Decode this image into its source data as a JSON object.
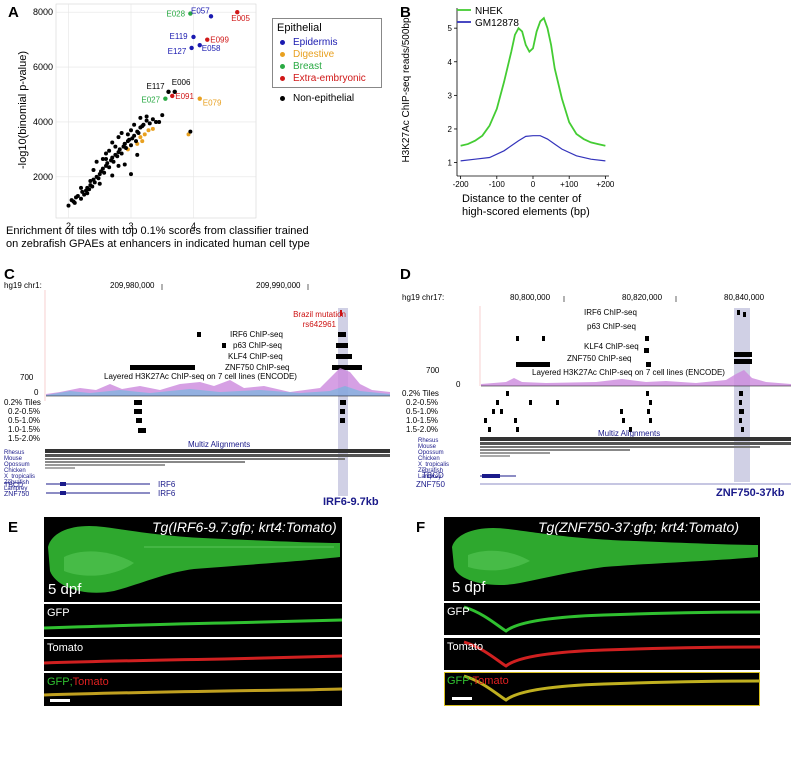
{
  "panels": {
    "A": {
      "letter": "A",
      "chart_data": {
        "type": "scatter",
        "ylabel": "-log10(binomial p-value)",
        "xlabel_lines": [
          "Enrichment of tiles with top 0.1% scores from classifier trained",
          "on zebrafish GPAEs at enhancers in indicated human cell type"
        ],
        "xlim": [
          1.8,
          5.0
        ],
        "ylim": [
          500,
          8300
        ],
        "xticks": [
          "2",
          "3",
          "4"
        ],
        "xtick_values": [
          2,
          3,
          4
        ],
        "yticks": [
          "2000",
          "4000",
          "6000",
          "8000"
        ],
        "ytick_values": [
          2000,
          4000,
          6000,
          8000
        ],
        "legend": {
          "title": "Epithelial",
          "items": [
            {
              "label": "Epidermis",
              "color": "#1a1ab0"
            },
            {
              "label": "Digestive",
              "color": "#e8a020"
            },
            {
              "label": "Breast",
              "color": "#2aaa44"
            },
            {
              "label": "Extra-embryonic",
              "color": "#d01818"
            }
          ],
          "other": {
            "label": "Non-epithelial",
            "color": "#000000"
          }
        },
        "labeled_points": [
          {
            "label": "E028",
            "x": 3.95,
            "y": 7950,
            "color": "#2aaa44"
          },
          {
            "label": "E057",
            "x": 4.28,
            "y": 7850,
            "color": "#1a1ab0"
          },
          {
            "label": "E005",
            "x": 4.7,
            "y": 8000,
            "color": "#d01818"
          },
          {
            "label": "E119",
            "x": 4.0,
            "y": 7100,
            "color": "#1a1ab0"
          },
          {
            "label": "E099",
            "x": 4.22,
            "y": 7000,
            "color": "#d01818"
          },
          {
            "label": "E127",
            "x": 3.97,
            "y": 6700,
            "color": "#1a1ab0"
          },
          {
            "label": "E058",
            "x": 4.1,
            "y": 6800,
            "color": "#1a1ab0"
          },
          {
            "label": "E117",
            "x": 3.6,
            "y": 5100,
            "color": "#000000"
          },
          {
            "label": "E006",
            "x": 3.7,
            "y": 5100,
            "color": "#000000"
          },
          {
            "label": "E027",
            "x": 3.55,
            "y": 4850,
            "color": "#2aaa44"
          },
          {
            "label": "E091",
            "x": 3.66,
            "y": 4950,
            "color": "#d01818"
          },
          {
            "label": "E079",
            "x": 4.1,
            "y": 4850,
            "color": "#e8a020"
          }
        ],
        "series": [
          {
            "name": "Digestive",
            "color": "#e8a020",
            "x": [
              3.15,
              3.28,
              3.35,
              3.18,
              3.22,
              3.92,
              2.95,
              3.1
            ],
            "y": [
              3450,
              3700,
              3750,
              3300,
              3550,
              3550,
              3000,
              3200
            ]
          },
          {
            "name": "Non-epithelial",
            "color": "#000000",
            "x": [
              2.0,
              2.05,
              2.08,
              2.12,
              2.15,
              2.2,
              2.22,
              2.25,
              2.28,
              2.3,
              2.33,
              2.35,
              2.38,
              2.4,
              2.42,
              2.45,
              2.48,
              2.5,
              2.52,
              2.55,
              2.57,
              2.6,
              2.62,
              2.65,
              2.68,
              2.7,
              2.72,
              2.75,
              2.78,
              2.8,
              2.82,
              2.85,
              2.88,
              2.9,
              2.92,
              2.95,
              2.97,
              3.0,
              3.02,
              3.05,
              3.08,
              3.1,
              3.12,
              3.15,
              3.18,
              3.2,
              3.25,
              3.3,
              3.35,
              3.4,
              2.1,
              2.3,
              2.5,
              2.7,
              2.9,
              3.1,
              2.2,
              2.4,
              2.6,
              2.8,
              3.0,
              2.45,
              2.65,
              2.85,
              3.05,
              3.25,
              2.55,
              2.75,
              2.95,
              3.45,
              3.5,
              3.95,
              2.35,
              2.6,
              2.9,
              3.15,
              2.7,
              2.8,
              3.0
            ],
            "y": [
              950,
              1150,
              1100,
              1250,
              1300,
              1200,
              1450,
              1350,
              1500,
              1600,
              1550,
              1700,
              1650,
              1900,
              1800,
              2000,
              1950,
              2100,
              2200,
              2300,
              2150,
              2400,
              2500,
              2350,
              2600,
              2700,
              2550,
              2800,
              2750,
              2900,
              3000,
              2850,
              3100,
              3200,
              3050,
              3300,
              3350,
              3150,
              3400,
              3500,
              3300,
              3650,
              3600,
              3800,
              3850,
              3900,
              4050,
              3950,
              4100,
              4000,
              1050,
              1400,
              1750,
              2050,
              2450,
              2800,
              1600,
              2250,
              2650,
              3450,
              3700,
              2550,
              2950,
              3600,
              3900,
              4200,
              2650,
              3100,
              3550,
              4000,
              4250,
              3650,
              1850,
              2850,
              3200,
              4150,
              3250,
              2400,
              2100
            ]
          }
        ]
      }
    },
    "B": {
      "letter": "B",
      "chart_data": {
        "type": "line",
        "ylabel": "H3K27Ac ChIP-seq reads/500bp",
        "xlabel_lines": [
          "Distance to the center of",
          "high-scored elements (bp)"
        ],
        "xticks": [
          "-200",
          "-100",
          "0",
          "+100",
          "+200"
        ],
        "xtick_values": [
          -200,
          -100,
          0,
          100,
          200
        ],
        "yticks": [
          "1",
          "2",
          "3",
          "4",
          "5"
        ],
        "ytick_values": [
          1,
          2,
          3,
          4,
          5
        ],
        "xlim": [
          -210,
          210
        ],
        "ylim": [
          0.6,
          5.6
        ],
        "series": [
          {
            "name": "NHEK",
            "color": "#44cc33",
            "x": [
              -200,
              -180,
              -160,
              -140,
              -120,
              -100,
              -80,
              -60,
              -50,
              -40,
              -30,
              -20,
              -10,
              0,
              10,
              20,
              30,
              40,
              50,
              60,
              80,
              100,
              120,
              140,
              160,
              180,
              200
            ],
            "y": [
              1.5,
              1.55,
              1.65,
              1.8,
              2.1,
              2.6,
              3.4,
              4.3,
              4.8,
              5.0,
              4.9,
              4.5,
              4.3,
              4.4,
              4.9,
              5.2,
              5.3,
              5.0,
              4.5,
              3.8,
              2.9,
              2.2,
              1.85,
              1.7,
              1.6,
              1.55,
              1.5
            ]
          },
          {
            "name": "GM12878",
            "color": "#3333bb",
            "x": [
              -200,
              -160,
              -120,
              -80,
              -60,
              -40,
              -20,
              0,
              20,
              40,
              60,
              80,
              120,
              160,
              200
            ],
            "y": [
              1.05,
              1.1,
              1.15,
              1.35,
              1.5,
              1.65,
              1.78,
              1.8,
              1.8,
              1.7,
              1.55,
              1.4,
              1.2,
              1.1,
              1.05
            ]
          }
        ]
      }
    },
    "C": {
      "letter": "C",
      "assembly": "hg19 chr1:",
      "coords": [
        "209,980,000",
        "209,990,000"
      ],
      "mutation_label": "Brazil mutation",
      "snp_label": "rs642961",
      "chip_tracks": [
        "IRF6 ChIP-seq",
        "p63 ChIP-seq",
        "KLF4 ChIP-seq",
        "ZNF750 ChIP-seq"
      ],
      "h3k27ac_label": "Layered H3K27Ac ChIP-seq on 7 cell lines (ENCODE)",
      "scale_max": "700",
      "scale_min": "0",
      "tile_labels": [
        "0.2% Tiles",
        "0.2-0.5%",
        "0.5-1.0%",
        "1.0-1.5%",
        "1.5-2.0%"
      ],
      "multiz_label": "Multiz Alignments",
      "species": [
        "Rhesus",
        "Mouse",
        "Opossum",
        "Chicken",
        "X_tropicalis",
        "Zebrafish",
        "Lamprey"
      ],
      "gene_labels": [
        "TBCD",
        "ZNF750"
      ],
      "gene_names_right": [
        "IRF6",
        "IRF6"
      ],
      "element_label": "IRF6-9.7kb"
    },
    "D": {
      "letter": "D",
      "assembly": "hg19 chr17:",
      "coords": [
        "80,800,000",
        "80,820,000",
        "80,840,000"
      ],
      "chip_tracks": [
        "IRF6 ChIP-seq",
        "p63 ChIP-seq",
        "KLF4 ChIP-seq",
        "ZNF750 ChIP-seq"
      ],
      "h3k27ac_label": "Layered H3K27Ac ChIP-seq on 7 cell lines (ENCODE)",
      "scale_max": "700",
      "scale_min": "0",
      "tile_labels": [
        "0.2% Tiles",
        "0.2-0.5%",
        "0.5-1.0%",
        "1.0-1.5%",
        "1.5-2.0%"
      ],
      "multiz_label": "Multiz Alignments",
      "species": [
        "Rhesus",
        "Mouse",
        "Opossum",
        "Chicken",
        "X_tropicalis",
        "Zebrafish",
        "Lamprey"
      ],
      "gene_labels": [
        "TBCD",
        "ZNF750"
      ],
      "element_label": "ZNF750-37kb"
    },
    "E": {
      "letter": "E",
      "title": "Tg(IRF6-9.7:gfp; krt4:Tomato)",
      "stage": "5 dpf",
      "strips": [
        "GFP",
        "Tomato"
      ],
      "merge_gfp": "GFP;",
      "merge_tomato": "Tomato"
    },
    "F": {
      "letter": "F",
      "title": "Tg(ZNF750-37:gfp; krt4:Tomato)",
      "stage": "5 dpf",
      "strips": [
        "GFP",
        "Tomato"
      ],
      "merge_gfp": "GFP;",
      "merge_tomato": "Tomato"
    }
  }
}
